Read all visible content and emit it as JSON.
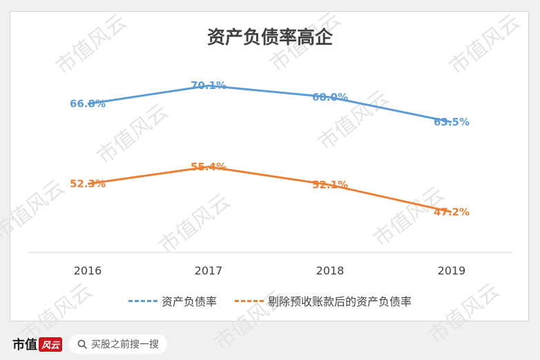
{
  "chart_data": {
    "type": "line",
    "title": "资产负债率高企",
    "categories": [
      "2016",
      "2017",
      "2018",
      "2019"
    ],
    "series": [
      {
        "name": "资产负债率",
        "values": [
          66.8,
          70.1,
          68.0,
          63.5
        ],
        "labels": [
          "66.8%",
          "70.1%",
          "68.0%",
          "63.5%"
        ],
        "color": "#5b9bd5"
      },
      {
        "name": "剔除预收账款后的资产负债率",
        "values": [
          52.3,
          55.4,
          52.1,
          47.2
        ],
        "labels": [
          "52.3%",
          "55.4%",
          "52.1%",
          "47.2%"
        ],
        "color": "#ed7d31"
      }
    ],
    "grid": false,
    "legend_position": "bottom"
  },
  "watermark": "市值风云",
  "footer": {
    "brand_name": "市值",
    "brand_logo": "风云",
    "search_text": "买股之前搜一搜"
  }
}
